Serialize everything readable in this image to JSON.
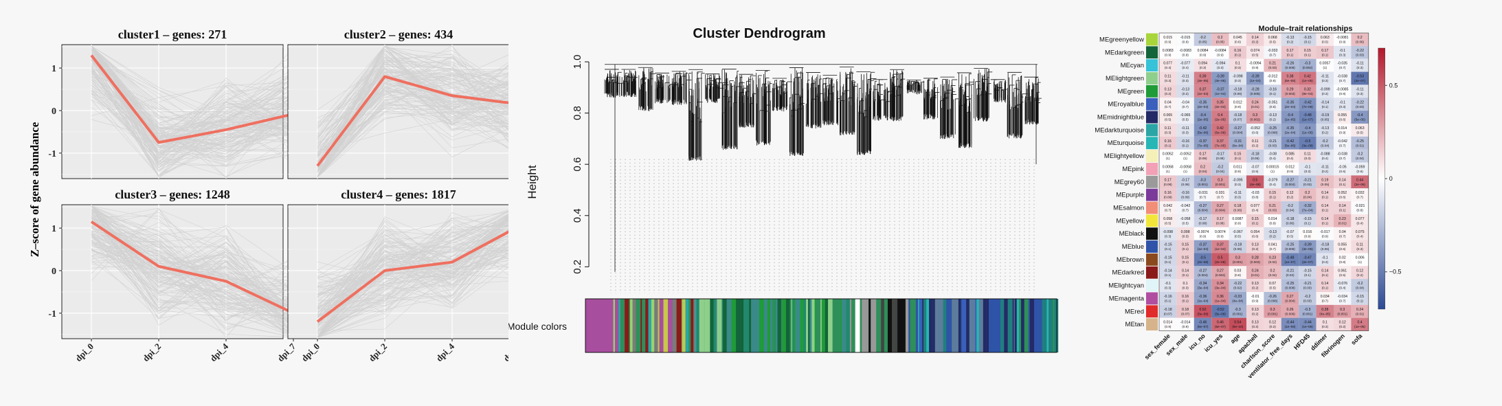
{
  "chart_data": [
    {
      "type": "line",
      "y_axis_label": "Z–score of gene abundance",
      "x_tick_labels": [
        "dpi_0",
        "dpi_2",
        "dpi_4",
        "dpi_7"
      ],
      "y_tick_labels": [
        "-1",
        "0",
        "1"
      ],
      "ylim": [
        -1.6,
        1.55
      ],
      "grid": true,
      "facets": [
        {
          "title": "cluster1 – genes: 271",
          "mean": [
            1.3,
            -0.75,
            -0.45,
            -0.08
          ]
        },
        {
          "title": "cluster2 – genes: 434",
          "mean": [
            -1.3,
            0.8,
            0.35,
            0.15
          ]
        },
        {
          "title": "cluster3 – genes: 1248",
          "mean": [
            1.15,
            0.1,
            -0.25,
            -1.0
          ]
        },
        {
          "title": "cluster4 – genes: 1817",
          "mean": [
            -1.2,
            0.0,
            0.2,
            1.05
          ]
        }
      ],
      "colors": {
        "mean_line": "#ef6f5f",
        "gene_lines": "#bdbdbd"
      }
    },
    {
      "type": "dendrogram",
      "title": "Cluster Dendrogram",
      "ylabel": "Height",
      "y_tick_labels": [
        "0.2",
        "0.4",
        "0.6",
        "0.8",
        "1.0"
      ],
      "ylim": [
        0.15,
        1.0
      ],
      "module_colors_label": "Module colors"
    },
    {
      "type": "heatmap",
      "title": "Module–trait relationships",
      "modules": [
        "MEgreenyellow",
        "MEdarkgreen",
        "MEcyan",
        "MElightgreen",
        "MEgreen",
        "MEroyalblue",
        "MEmidnightblue",
        "MEdarkturquoise",
        "MEturquoise",
        "MElightyellow",
        "MEpink",
        "MEgrey60",
        "MEpurple",
        "MEsalmon",
        "MEyellow",
        "MEblack",
        "MEblue",
        "MEbrown",
        "MEdarkred",
        "MElightcyan",
        "MEmagenta",
        "MEred",
        "MEtan"
      ],
      "module_colors": [
        "#a8d53a",
        "#13643a",
        "#36c2d8",
        "#8fcf8c",
        "#1f9b37",
        "#3a5fbd",
        "#232a66",
        "#2aa6a6",
        "#27b6b6",
        "#f5f0b8",
        "#f2a1b6",
        "#9a9a9a",
        "#7b3b9b",
        "#f28d77",
        "#f2e63a",
        "#111111",
        "#2f53a8",
        "#8a4a1e",
        "#8b1a1a",
        "#dff5f7",
        "#b04fa0",
        "#e12a2a",
        "#d6b38a"
      ],
      "traits": [
        "sex_female",
        "sex_male",
        "icu_no",
        "icu_yes",
        "age",
        "apachell",
        "charlson_score",
        "ventilator_free_days",
        "HFD45",
        "ddimer",
        "fibrinogen",
        "sofa"
      ],
      "correlations": [
        [
          0.015,
          -0.015,
          -0.2,
          0.2,
          0.045,
          0.14,
          0.068,
          -0.13,
          -0.15,
          0.063,
          -0.0081,
          0.2
        ],
        [
          0.0083,
          -0.0083,
          0.0084,
          -0.0084,
          0.16,
          0.074,
          -0.033,
          0.17,
          0.15,
          0.17,
          -0.1,
          -0.22
        ],
        [
          0.077,
          -0.077,
          0.094,
          -0.094,
          0.1,
          -0.0094,
          0.21,
          -0.26,
          -0.3,
          0.0057,
          -0.035,
          -0.11
        ],
        [
          0.11,
          -0.11,
          0.39,
          -0.39,
          -0.098,
          -0.39,
          -0.012,
          0.38,
          0.42,
          -0.11,
          -0.038,
          -0.53
        ],
        [
          0.13,
          -0.13,
          0.37,
          -0.37,
          -0.18,
          -0.28,
          -0.16,
          0.29,
          0.32,
          -0.099,
          -0.0085,
          -0.11
        ],
        [
          0.04,
          -0.04,
          -0.35,
          0.35,
          0.012,
          0.24,
          -0.051,
          -0.35,
          -0.42,
          -0.14,
          -0.1,
          -0.22
        ],
        [
          0.065,
          -0.065,
          -0.4,
          0.4,
          -0.18,
          0.3,
          -0.13,
          -0.4,
          -0.48,
          -0.19,
          0.055,
          -0.4
        ],
        [
          0.11,
          -0.11,
          -0.42,
          0.42,
          -0.27,
          -0.052,
          -0.25,
          -0.35,
          -0.4,
          -0.13,
          0.014,
          0.063
        ],
        [
          0.16,
          -0.16,
          -0.37,
          0.37,
          -0.31,
          0.11,
          -0.21,
          -0.42,
          -0.5,
          -0.2,
          -0.042,
          -0.25
        ],
        [
          0.0052,
          -0.0052,
          0.17,
          -0.17,
          0.15,
          -0.18,
          -0.08,
          0.085,
          0.11,
          -0.088,
          -0.038,
          -0.2
        ],
        [
          0.0058,
          -0.0058,
          0.2,
          -0.2,
          0.011,
          -0.07,
          0.00015,
          0.012,
          -0.1,
          -0.11,
          -0.05,
          -0.059
        ],
        [
          0.17,
          -0.17,
          -0.3,
          0.3,
          -0.095,
          0.5,
          -0.079,
          -0.27,
          -0.21,
          0.19,
          0.14,
          0.44
        ],
        [
          0.16,
          -0.16,
          -0.031,
          0.031,
          -0.11,
          -0.03,
          0.15,
          0.12,
          0.2,
          0.14,
          0.052,
          0.032
        ],
        [
          0.042,
          -0.042,
          -0.27,
          0.27,
          0.18,
          0.077,
          0.21,
          -0.2,
          -0.32,
          0.14,
          0.14,
          -0.021
        ],
        [
          0.058,
          -0.058,
          -0.17,
          0.17,
          0.0087,
          0.15,
          0.014,
          -0.18,
          -0.15,
          0.14,
          0.23,
          0.077
        ],
        [
          -0.098,
          0.098,
          -0.0074,
          0.0074,
          -0.067,
          0.054,
          -0.13,
          -0.07,
          0.016,
          -0.017,
          0.04,
          0.075
        ],
        [
          -0.15,
          0.15,
          -0.37,
          0.37,
          -0.18,
          0.13,
          0.041,
          -0.25,
          -0.39,
          -0.18,
          0.055,
          0.11
        ],
        [
          -0.15,
          0.15,
          -0.5,
          0.5,
          0.3,
          0.28,
          0.23,
          -0.48,
          -0.47,
          -0.1,
          0.02,
          0.006
        ],
        [
          -0.14,
          0.14,
          -0.27,
          0.27,
          0.03,
          0.24,
          0.2,
          -0.21,
          -0.15,
          0.14,
          0.061,
          0.12
        ],
        [
          -0.1,
          0.1,
          -0.34,
          0.34,
          -0.22,
          0.13,
          0.07,
          -0.25,
          -0.21,
          0.14,
          -0.076,
          -0.2
        ],
        [
          -0.16,
          0.16,
          -0.36,
          0.36,
          -0.33,
          -0.01,
          -0.26,
          0.27,
          -0.2,
          0.034,
          -0.034,
          -0.15
        ],
        [
          -0.18,
          0.18,
          0.52,
          -0.52,
          -0.3,
          0.13,
          0.3,
          0.26,
          -0.3,
          0.38,
          0.3,
          0.24
        ],
        [
          0.014,
          -0.014,
          -0.46,
          0.46,
          0.54,
          0.13,
          0.12,
          -0.44,
          -0.44,
          0.1,
          0.12,
          0.4
        ]
      ],
      "pvalues": [
        [
          "(0.9)",
          "(0.9)",
          "(0.05)",
          "(0.05)",
          "(0.6)",
          "(0.2)",
          "(0.5)",
          "(0.2)",
          "(0.1)",
          "(0.5)",
          "(0.9)",
          "(0.06)"
        ],
        [
          "(0.9)",
          "(0.9)",
          "(0.9)",
          "(0.9)",
          "(0.1)",
          "(0.5)",
          "(0.7)",
          "(0.1)",
          "(0.1)",
          "(0.1)",
          "(0.3)",
          "(0.03)"
        ],
        [
          "(0.4)",
          "(0.4)",
          "(0.3)",
          "(0.3)",
          "(0.3)",
          "(0.9)",
          "(0.03)",
          "(0.008)",
          "(0.002)",
          "(1)",
          "(0.7)",
          "(0.3)"
        ],
        [
          "(0.3)",
          "(0.3)",
          "(3e–05)",
          "(3e–05)",
          "(0.3)",
          "(1e–04)",
          "(0.9)",
          "(5e–05)",
          "(1e–05)",
          "(0.3)",
          "(0.7)",
          "(2e–07)"
        ],
        [
          "(0.2)",
          "(0.2)",
          "(1e–04)",
          "(1e–04)",
          "(0.06)",
          "(0.005)",
          "(0.1)",
          "(0.003)",
          "(8e–04)",
          "(0.3)",
          "(0.9)",
          "(0.3)"
        ],
        [
          "(0.7)",
          "(0.7)",
          "(2e–04)",
          "(2e–04)",
          "(0.9)",
          "(0.01)",
          "(0.6)",
          "(2e–04)",
          "(7e–06)",
          "(0.1)",
          "(0.3)",
          "(0.03)"
        ],
        [
          "(0.5)",
          "(0.5)",
          "(2e–05)",
          "(2e–05)",
          "(0.07)",
          "(0.002)",
          "(0.2)",
          "(1e–05)",
          "(1e–07)",
          "(0.05)",
          "(0.6)",
          "(5e–05)"
        ],
        [
          "(0.3)",
          "(0.3)",
          "(5e–06)",
          "(5e–06)",
          "(0.004)",
          "(0.6)",
          "(0.008)",
          "(2e–04)",
          "(1e–05)",
          "(0.2)",
          "(0.9)",
          "(0.5)"
        ],
        [
          "(0.1)",
          "(0.1)",
          "(7e–05)",
          "(7e–05)",
          "(9e–04)",
          "(0.2)",
          "(0.03)",
          "(5e–06)",
          "(3e–08)",
          "(0.04)",
          "(0.7)",
          "(0.01)"
        ],
        [
          "(1)",
          "(1)",
          "(0.08)",
          "(0.08)",
          "(0.1)",
          "(0.06)",
          "(0.4)",
          "(0.4)",
          "(0.3)",
          "(0.4)",
          "(0.7)",
          "(0.04)"
        ],
        [
          "(1)",
          "(1)",
          "(0.04)",
          "(0.04)",
          "(0.9)",
          "(0.5)",
          "(1)",
          "(0.9)",
          "(0.3)",
          "(0.2)",
          "(0.6)",
          "(0.6)"
        ],
        [
          "(0.08)",
          "(0.08)",
          "(0.001)",
          "(0.001)",
          "(0.3)",
          "(4e–08)",
          "(0.4)",
          "(0.004)",
          "(0.03)",
          "(0.05)",
          "(0.1)",
          "(2e–06)"
        ],
        [
          "(0.09)",
          "(0.09)",
          "(0.7)",
          "(0.7)",
          "(0.3)",
          "(0.8)",
          "(0.1)",
          "(0.2)",
          "(0.04)",
          "(0.1)",
          "(0.6)",
          "(0.7)"
        ],
        [
          "(0.7)",
          "(0.7)",
          "(0.004)",
          "(0.004)",
          "(0.06)",
          "(0.4)",
          "(0.03)",
          "(0.04)",
          "(7e–04)",
          "(0.1)",
          "(0.1)",
          "(0.8)"
        ],
        [
          "(0.5)",
          "(0.5)",
          "(0.08)",
          "(0.08)",
          "(0.9)",
          "(0.1)",
          "(0.9)",
          "(0.06)",
          "(0.1)",
          "(0.1)",
          "(0.01)",
          "(0.4)"
        ],
        [
          "(0.3)",
          "(0.3)",
          "(0.9)",
          "(0.9)",
          "(0.5)",
          "(0.6)",
          "(0.2)",
          "(0.5)",
          "(0.9)",
          "(0.9)",
          "(0.7)",
          "(0.4)"
        ],
        [
          "(0.1)",
          "(0.1)",
          "(1e–04)",
          "(1e–04)",
          "(0.06)",
          "(0.2)",
          "(0.7)",
          "(0.008)",
          "(3e–05)",
          "(0.06)",
          "(0.6)",
          "(0.3)"
        ],
        [
          "(0.1)",
          "(0.1)",
          "(2e–08)",
          "(2e–08)",
          "(0.001)",
          "(0.003)",
          "(0.02)",
          "(1e–07)",
          "(2e–07)",
          "(0.3)",
          "(0.8)",
          "(1)"
        ],
        [
          "(0.1)",
          "(0.1)",
          "(0.004)",
          "(0.004)",
          "(0.8)",
          "(0.01)",
          "(0.04)",
          "(0.03)",
          "(0.1)",
          "(0.1)",
          "(0.5)",
          "(0.2)"
        ],
        [
          "(0.3)",
          "(0.3)",
          "(3e–04)",
          "(3e–04)",
          "(0.02)",
          "(0.2)",
          "(0.5)",
          "(0.008)",
          "(0.03)",
          "(0.1)",
          "(0.4)",
          "(0.04)"
        ],
        [
          "(0.1)",
          "(0.1)",
          "(1e–04)",
          "(1e–04)",
          "(4e–04)",
          "(0.9)",
          "(0.006)",
          "(0.004)",
          "(0.03)",
          "(0.7)",
          "(0.7)",
          "(0.1)"
        ],
        [
          "(0.07)",
          "(0.07)",
          "(5e–09)",
          "(5e–09)",
          "(0.001)",
          "(0.2)",
          "(0.001)",
          "(0.006)",
          "(0.001)",
          "(4e–05)",
          "(0.001)",
          "(0.01)"
        ],
        [
          "(0.9)",
          "(0.9)",
          "(5e–07)",
          "(5e–07)",
          "(9e–10)",
          "(0.2)",
          "(0.2)",
          "(1e–06)",
          "(1e–06)",
          "(0.3)",
          "(0.2)",
          "(1e–05)"
        ]
      ],
      "legend_ticks": [
        "0.5",
        "0",
        "−0.5"
      ],
      "legend_tick_values": [
        0.5,
        0,
        -0.5
      ],
      "scale_limits": [
        -0.7,
        0.7
      ],
      "colors": {
        "high": "#b2182b",
        "mid": "#ffffff",
        "low": "#2c4a94"
      }
    }
  ]
}
